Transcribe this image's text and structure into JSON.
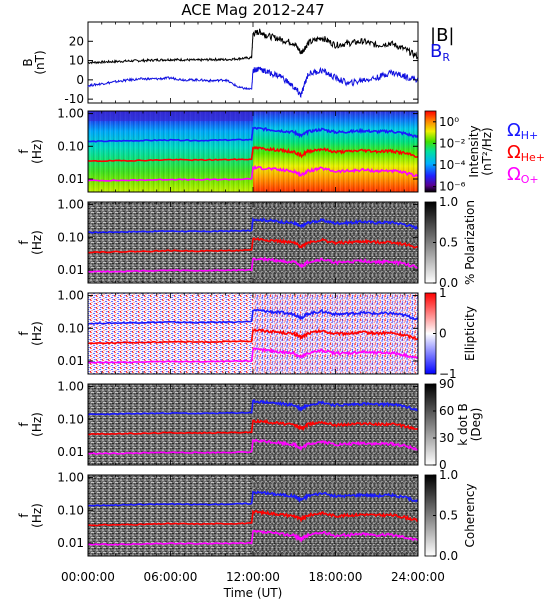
{
  "title": "ACE Mag 2012-247",
  "colors": {
    "B": "#000000",
    "BR": "#1010e0",
    "H": "#1a1aff",
    "He": "#ff0000",
    "O": "#ff00ff"
  },
  "legend": {
    "top": [
      {
        "text": "|B|",
        "sub": "",
        "color": "#000000"
      },
      {
        "text": "B",
        "sub": "R",
        "color": "#1010e0"
      }
    ],
    "gyro": [
      {
        "text": "Ω",
        "sub": "H+",
        "color": "#1a1aff"
      },
      {
        "text": "Ω",
        "sub": "He+",
        "color": "#ff0000"
      },
      {
        "text": "Ω",
        "sub": "O+",
        "color": "#ff00ff"
      }
    ]
  },
  "chart_data": [
    {
      "type": "line",
      "panel": "B",
      "ylabel": "B (nT)",
      "ylim": [
        -12,
        30
      ],
      "yticks": [
        "20",
        "10",
        "0",
        "-10"
      ],
      "xlim_hours": [
        0,
        24
      ],
      "series": [
        {
          "name": "|B|",
          "color": "#000000",
          "x": [
            0,
            1,
            2,
            3,
            4,
            5,
            6,
            7,
            8,
            9,
            10,
            11,
            11.9,
            12.0,
            12.5,
            13,
            14,
            15,
            15.5,
            16,
            17,
            18,
            19,
            20,
            21,
            22,
            23,
            24
          ],
          "y": [
            9,
            9.2,
            9.5,
            9.8,
            10,
            10.3,
            10.5,
            10.4,
            10.2,
            10.6,
            10.5,
            11,
            11.5,
            24,
            25,
            23,
            21,
            19,
            14,
            19,
            22,
            18,
            19,
            20,
            18,
            19,
            16,
            12
          ]
        },
        {
          "name": "BR",
          "color": "#1010e0",
          "x": [
            0,
            1,
            2,
            3,
            4,
            5,
            6,
            7,
            8,
            9,
            10,
            11,
            11.9,
            12.0,
            12.5,
            13,
            14,
            15,
            15.5,
            16,
            17,
            18,
            19,
            20,
            21,
            22,
            23,
            24
          ],
          "y": [
            -3,
            -2,
            -1,
            0,
            0.5,
            0.5,
            1,
            0,
            0,
            -0.5,
            0,
            -4,
            -5,
            5,
            6,
            4,
            2,
            -4,
            -8,
            3,
            5,
            1,
            -2,
            0,
            1,
            4,
            2,
            0
          ]
        }
      ]
    },
    {
      "type": "heatmap",
      "panel": "Intensity",
      "ylabel": "f (Hz)",
      "colorbar_label": "Intensity (nT²/Hz)",
      "colorbar_ticks": [
        "10⁰",
        "10⁻²",
        "10⁻⁴",
        "10⁻⁶"
      ],
      "colorbar_range": [
        -6.5,
        1
      ],
      "colormap": "rainbow"
    },
    {
      "type": "heatmap",
      "panel": "Polarization",
      "ylabel": "f (Hz)",
      "colorbar_label": "% Polarization",
      "colorbar_ticks": [
        "1.0",
        "0.5",
        "0.0"
      ],
      "colorbar_range": [
        0,
        1
      ],
      "colormap": "gray"
    },
    {
      "type": "heatmap",
      "panel": "Ellipticity",
      "ylabel": "f (Hz)",
      "colorbar_label": "Ellipticity",
      "colorbar_ticks": [
        "1",
        "0",
        "−1"
      ],
      "colorbar_range": [
        -1,
        1
      ],
      "colormap": "bwr"
    },
    {
      "type": "heatmap",
      "panel": "kdotB",
      "ylabel": "f (Hz)",
      "colorbar_label": "k dot B (Deg)",
      "colorbar_ticks": [
        "90",
        "60",
        "30",
        "0"
      ],
      "colorbar_range": [
        0,
        90
      ],
      "colormap": "gray"
    },
    {
      "type": "heatmap",
      "panel": "Coherency",
      "ylabel": "f (Hz)",
      "colorbar_label": "Coherency",
      "colorbar_ticks": [
        "1.0",
        "0.5",
        "0.0"
      ],
      "colorbar_range": [
        0,
        1
      ],
      "colormap": "gray"
    }
  ],
  "spectro": {
    "f_range": [
      0.004,
      1.2
    ],
    "yticks": [
      "1.00",
      "0.10",
      "0.01"
    ],
    "gyro_lines": [
      {
        "name": "H+",
        "color": "#1a1aff",
        "x": [
          0,
          2,
          4,
          6,
          8,
          10,
          11.9,
          12.0,
          13,
          14,
          15,
          15.5,
          16,
          17,
          18,
          19,
          20,
          21,
          22,
          23,
          24
        ],
        "y": [
          0.14,
          0.145,
          0.15,
          0.155,
          0.15,
          0.155,
          0.16,
          0.36,
          0.33,
          0.3,
          0.27,
          0.21,
          0.28,
          0.33,
          0.27,
          0.28,
          0.3,
          0.28,
          0.29,
          0.25,
          0.19
        ]
      },
      {
        "name": "He+",
        "color": "#ff0000",
        "x": [
          0,
          2,
          4,
          6,
          8,
          10,
          11.9,
          12.0,
          13,
          14,
          15,
          15.5,
          16,
          17,
          18,
          19,
          20,
          21,
          22,
          23,
          24
        ],
        "y": [
          0.035,
          0.036,
          0.037,
          0.039,
          0.038,
          0.039,
          0.04,
          0.09,
          0.083,
          0.075,
          0.067,
          0.052,
          0.07,
          0.083,
          0.067,
          0.07,
          0.075,
          0.07,
          0.072,
          0.062,
          0.048
        ]
      },
      {
        "name": "O+",
        "color": "#ff00ff",
        "x": [
          0,
          2,
          4,
          6,
          8,
          10,
          11.9,
          12.0,
          13,
          14,
          15,
          15.5,
          16,
          17,
          18,
          19,
          20,
          21,
          22,
          23,
          24
        ],
        "y": [
          0.009,
          0.009,
          0.0093,
          0.0097,
          0.0095,
          0.0097,
          0.01,
          0.0225,
          0.021,
          0.019,
          0.017,
          0.013,
          0.0175,
          0.021,
          0.017,
          0.0175,
          0.019,
          0.0175,
          0.018,
          0.0155,
          0.012
        ]
      }
    ]
  },
  "xaxis": {
    "label": "Time (UT)",
    "ticks": [
      {
        "hour": 0,
        "label": "00:00:00"
      },
      {
        "hour": 6,
        "label": "06:00:00"
      },
      {
        "hour": 12,
        "label": "12:00:00"
      },
      {
        "hour": 18,
        "label": "18:00:00"
      },
      {
        "hour": 24,
        "label": "24:00:00"
      }
    ]
  }
}
